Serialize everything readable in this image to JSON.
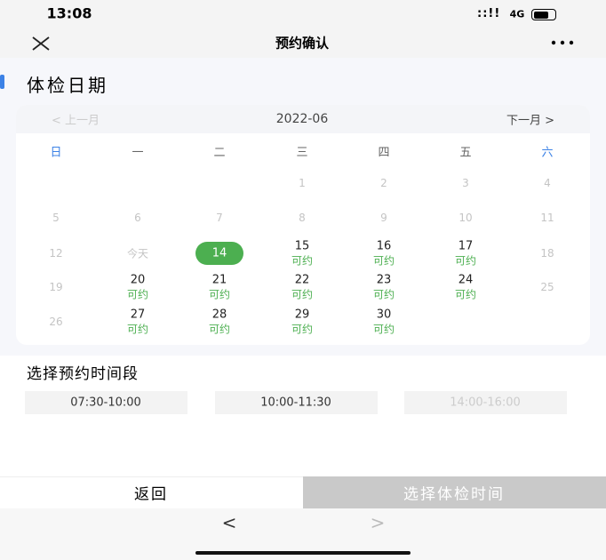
{
  "status_bar": {
    "time": "13:08",
    "network": "4G"
  },
  "nav": {
    "title": "预约确认"
  },
  "section_title": "体检日期",
  "calendar": {
    "prev": "< 上一月",
    "month": "2022-06",
    "next": "下一月 >",
    "weekdays": [
      "日",
      "一",
      "二",
      "三",
      "四",
      "五",
      "六"
    ],
    "weeks": [
      [
        null,
        null,
        null,
        {
          "day": "1"
        },
        {
          "day": "2"
        },
        {
          "day": "3"
        },
        {
          "day": "4"
        }
      ],
      [
        {
          "day": "5"
        },
        {
          "day": "6"
        },
        {
          "day": "7"
        },
        {
          "day": "8"
        },
        {
          "day": "9"
        },
        {
          "day": "10"
        },
        {
          "day": "11"
        }
      ],
      [
        {
          "day": "12"
        },
        {
          "day": "今天"
        },
        {
          "day": "14",
          "selected": true
        },
        {
          "day": "15",
          "status": "可约"
        },
        {
          "day": "16",
          "status": "可约"
        },
        {
          "day": "17",
          "status": "可约"
        },
        {
          "day": "18"
        }
      ],
      [
        {
          "day": "19"
        },
        {
          "day": "20",
          "status": "可约"
        },
        {
          "day": "21",
          "status": "可约"
        },
        {
          "day": "22",
          "status": "可约"
        },
        {
          "day": "23",
          "status": "可约"
        },
        {
          "day": "24",
          "status": "可约"
        },
        {
          "day": "25"
        }
      ],
      [
        {
          "day": "26"
        },
        {
          "day": "27",
          "status": "可约"
        },
        {
          "day": "28",
          "status": "可约"
        },
        {
          "day": "29",
          "status": "可约"
        },
        {
          "day": "30",
          "status": "可约"
        },
        null,
        null
      ]
    ]
  },
  "time_section": {
    "title": "选择预约时间段",
    "slots": [
      {
        "label": "07:30-10:00"
      },
      {
        "label": "10:00-11:30"
      },
      {
        "label": "14:00-16:00",
        "disabled": true
      }
    ]
  },
  "footer": {
    "back": "返回",
    "confirm": "选择体检时间"
  },
  "browser_bar": {
    "back": "<",
    "forward": ">"
  }
}
